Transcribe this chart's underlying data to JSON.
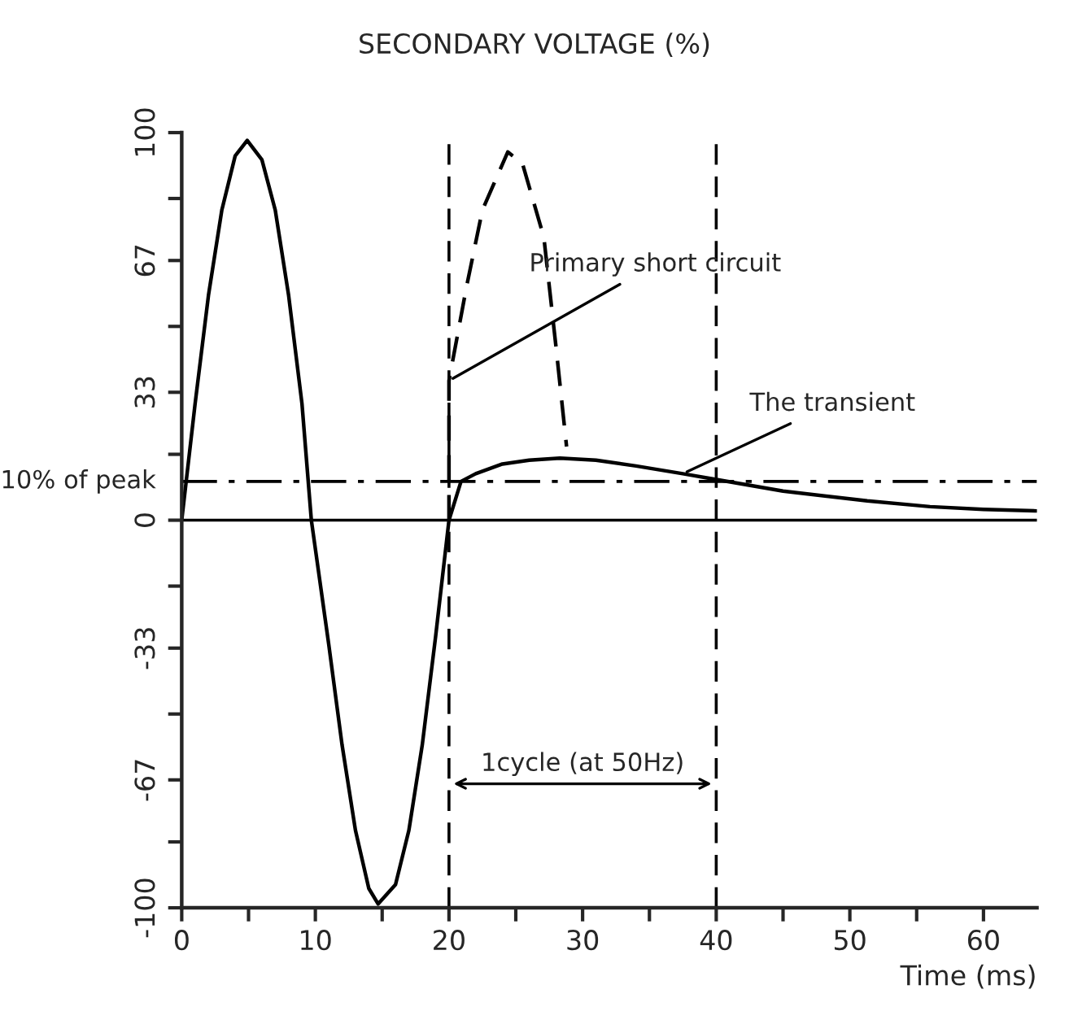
{
  "chart_data": {
    "type": "line",
    "title": "SECONDARY VOLTAGE (%)",
    "xlabel": "Time (ms)",
    "series": [
      {
        "color": "#000000",
        "line_style": "solid",
        "x": [
          0,
          1,
          2,
          3,
          4,
          4.9,
          6,
          7,
          8,
          9,
          9.7,
          11,
          12,
          13,
          14,
          14.7,
          16,
          17,
          18,
          19,
          20,
          20.9,
          22,
          24,
          26,
          28.3,
          31,
          34,
          37.5,
          40,
          45,
          51.3,
          56,
          60,
          64
        ],
        "values": [
          0,
          30,
          58,
          80,
          94,
          98,
          93,
          80,
          58,
          30,
          0,
          -32,
          -58,
          -80,
          -95,
          -99,
          -94,
          -80,
          -58,
          -30,
          0,
          10,
          12,
          14.5,
          15.5,
          16,
          15.5,
          14,
          12,
          10.5,
          7.5,
          5,
          3.5,
          2.8,
          2.4
        ]
      },
      {
        "color": "#000000",
        "line_style": "dashed",
        "x": [
          20,
          20,
          21.3,
          22.5,
          24.4,
          25.5,
          27.1,
          28,
          28.8
        ],
        "values": [
          0,
          36,
          60,
          80,
          95,
          92,
          73,
          45,
          19
        ]
      }
    ],
    "xlim": [
      0,
      64
    ],
    "ylim": [
      -100,
      100
    ],
    "xticks": [
      0,
      {
        "value": 5,
        "label": null
      },
      10,
      {
        "value": 15,
        "label": null
      },
      20,
      {
        "value": 25,
        "label": null
      },
      30,
      {
        "value": 35,
        "label": null
      },
      40,
      {
        "value": 45,
        "label": null
      },
      50,
      {
        "value": 55,
        "label": null
      },
      60
    ],
    "yticks": [
      -100,
      {
        "value": -83,
        "label": null
      },
      -67,
      {
        "value": -50,
        "label": null
      },
      -33,
      {
        "value": -17,
        "label": null
      },
      0,
      {
        "value": 17,
        "label": null
      },
      33,
      {
        "value": 50,
        "label": null
      },
      67,
      {
        "value": 83,
        "label": null
      },
      100
    ],
    "ref_lines": [
      {
        "axis": "y",
        "value": 10,
        "label": "10% of peak",
        "line_style": "dashdot"
      },
      {
        "axis": "x",
        "value": 20,
        "line_style": "dashed"
      },
      {
        "axis": "x",
        "value": 40,
        "line_style": "dashed"
      },
      {
        "axis": "y",
        "value": 0,
        "line_style": "solid"
      }
    ],
    "annotations": [
      {
        "text": "Primary short circuit",
        "x": 20,
        "y": 36
      },
      {
        "text": "The transient",
        "x": 37.5,
        "y": 12
      },
      "1cycle (at 50Hz)"
    ],
    "grid": false
  }
}
